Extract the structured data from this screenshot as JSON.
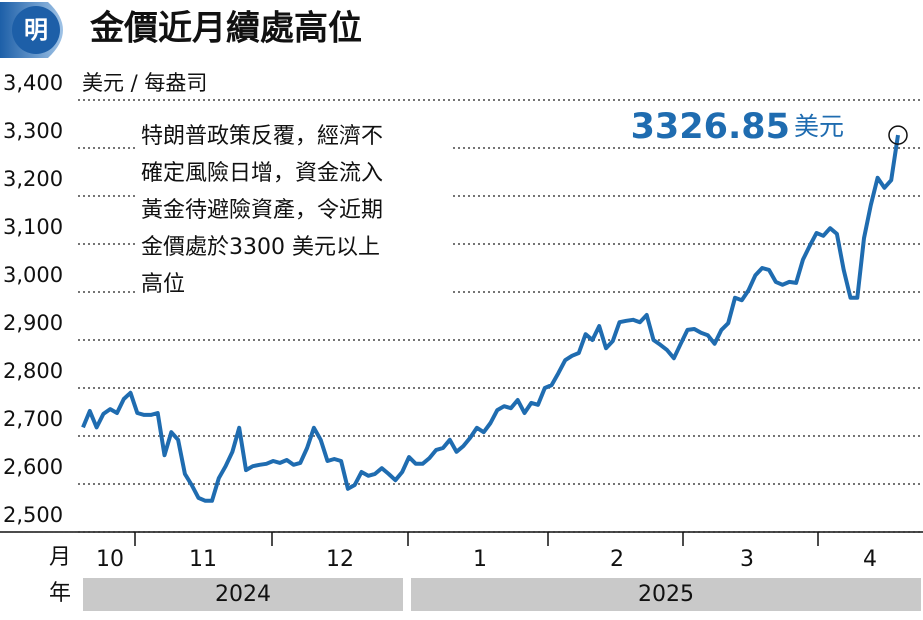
{
  "logo": "明",
  "chart_data": {
    "type": "line",
    "title": "金價近月續處高位",
    "y_unit_label": "美元 / 每盎司",
    "ylim": [
      2500,
      3400
    ],
    "yticks": [
      {
        "value": 2500,
        "label": "2,500"
      },
      {
        "value": 2600,
        "label": "2,600"
      },
      {
        "value": 2700,
        "label": "2,700"
      },
      {
        "value": 2800,
        "label": "2,800"
      },
      {
        "value": 2900,
        "label": "2,900"
      },
      {
        "value": 3000,
        "label": "3,000"
      },
      {
        "value": 3100,
        "label": "3,100"
      },
      {
        "value": 3200,
        "label": "3,200"
      },
      {
        "value": 3300,
        "label": "3,300"
      },
      {
        "value": 3400,
        "label": "3,400"
      }
    ],
    "grid": true,
    "color": "#1f6cb0",
    "month_axis_label": "月",
    "year_axis_label": "年",
    "months": [
      "10",
      "11",
      "12",
      "1",
      "2",
      "3",
      "4"
    ],
    "years": [
      "2024",
      "2025"
    ],
    "values": [
      2718,
      2752,
      2718,
      2746,
      2756,
      2748,
      2777,
      2790,
      2748,
      2744,
      2744,
      2748,
      2660,
      2708,
      2692,
      2621,
      2598,
      2571,
      2565,
      2565,
      2612,
      2637,
      2667,
      2717,
      2629,
      2637,
      2640,
      2642,
      2648,
      2644,
      2650,
      2640,
      2644,
      2675,
      2717,
      2692,
      2648,
      2652,
      2648,
      2590,
      2598,
      2625,
      2617,
      2621,
      2633,
      2621,
      2608,
      2625,
      2656,
      2642,
      2642,
      2654,
      2671,
      2675,
      2692,
      2667,
      2679,
      2696,
      2717,
      2708,
      2727,
      2754,
      2762,
      2758,
      2775,
      2748,
      2769,
      2765,
      2800,
      2806,
      2831,
      2858,
      2867,
      2873,
      2912,
      2900,
      2929,
      2883,
      2898,
      2937,
      2940,
      2942,
      2937,
      2952,
      2900,
      2890,
      2879,
      2862,
      2892,
      2921,
      2923,
      2915,
      2910,
      2892,
      2921,
      2935,
      2988,
      2983,
      3004,
      3035,
      3050,
      3046,
      3021,
      3015,
      3021,
      3019,
      3067,
      3096,
      3123,
      3117,
      3133,
      3121,
      3046,
      2988,
      2988,
      3112,
      3181,
      3238,
      3217,
      3233,
      3326.85
    ],
    "last_value_unit": "美元",
    "annotation": [
      "特朗普政策反覆，經濟不",
      "確定風險日增，資金流入",
      "黃金待避險資產，令近期",
      "金價處於3300 美元以上",
      "高位"
    ]
  }
}
